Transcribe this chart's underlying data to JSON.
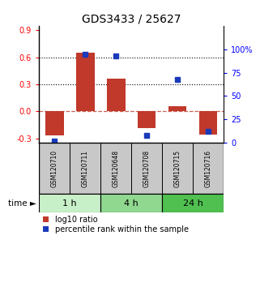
{
  "title": "GDS3433 / 25627",
  "samples": [
    "GSM120710",
    "GSM120711",
    "GSM120648",
    "GSM120708",
    "GSM120715",
    "GSM120716"
  ],
  "log10_ratio": [
    -0.27,
    0.65,
    0.36,
    -0.19,
    0.06,
    -0.26
  ],
  "percentile_rank": [
    2,
    95,
    93,
    8,
    68,
    12
  ],
  "time_groups": [
    {
      "label": "1 h",
      "samples": [
        0,
        1
      ],
      "color": "#c8f0c8"
    },
    {
      "label": "4 h",
      "samples": [
        2,
        3
      ],
      "color": "#90d890"
    },
    {
      "label": "24 h",
      "samples": [
        4,
        5
      ],
      "color": "#50c050"
    }
  ],
  "bar_color": "#c0392b",
  "dot_color": "#1a3aba",
  "left_ylim": [
    -0.35,
    0.95
  ],
  "right_ylim": [
    0,
    125
  ],
  "left_yticks": [
    -0.3,
    0.0,
    0.3,
    0.6,
    0.9
  ],
  "right_yticks": [
    0,
    25,
    50,
    75,
    100
  ],
  "right_yticklabels": [
    "0",
    "25",
    "50",
    "75",
    "100%"
  ],
  "hline_y": [
    0.3,
    0.6
  ],
  "zero_line_y": 0.0,
  "background_color": "#ffffff",
  "sample_box_color": "#c8c8c8",
  "title_fontsize": 10,
  "tick_fontsize": 7,
  "label_fontsize": 6,
  "legend_fontsize": 7
}
